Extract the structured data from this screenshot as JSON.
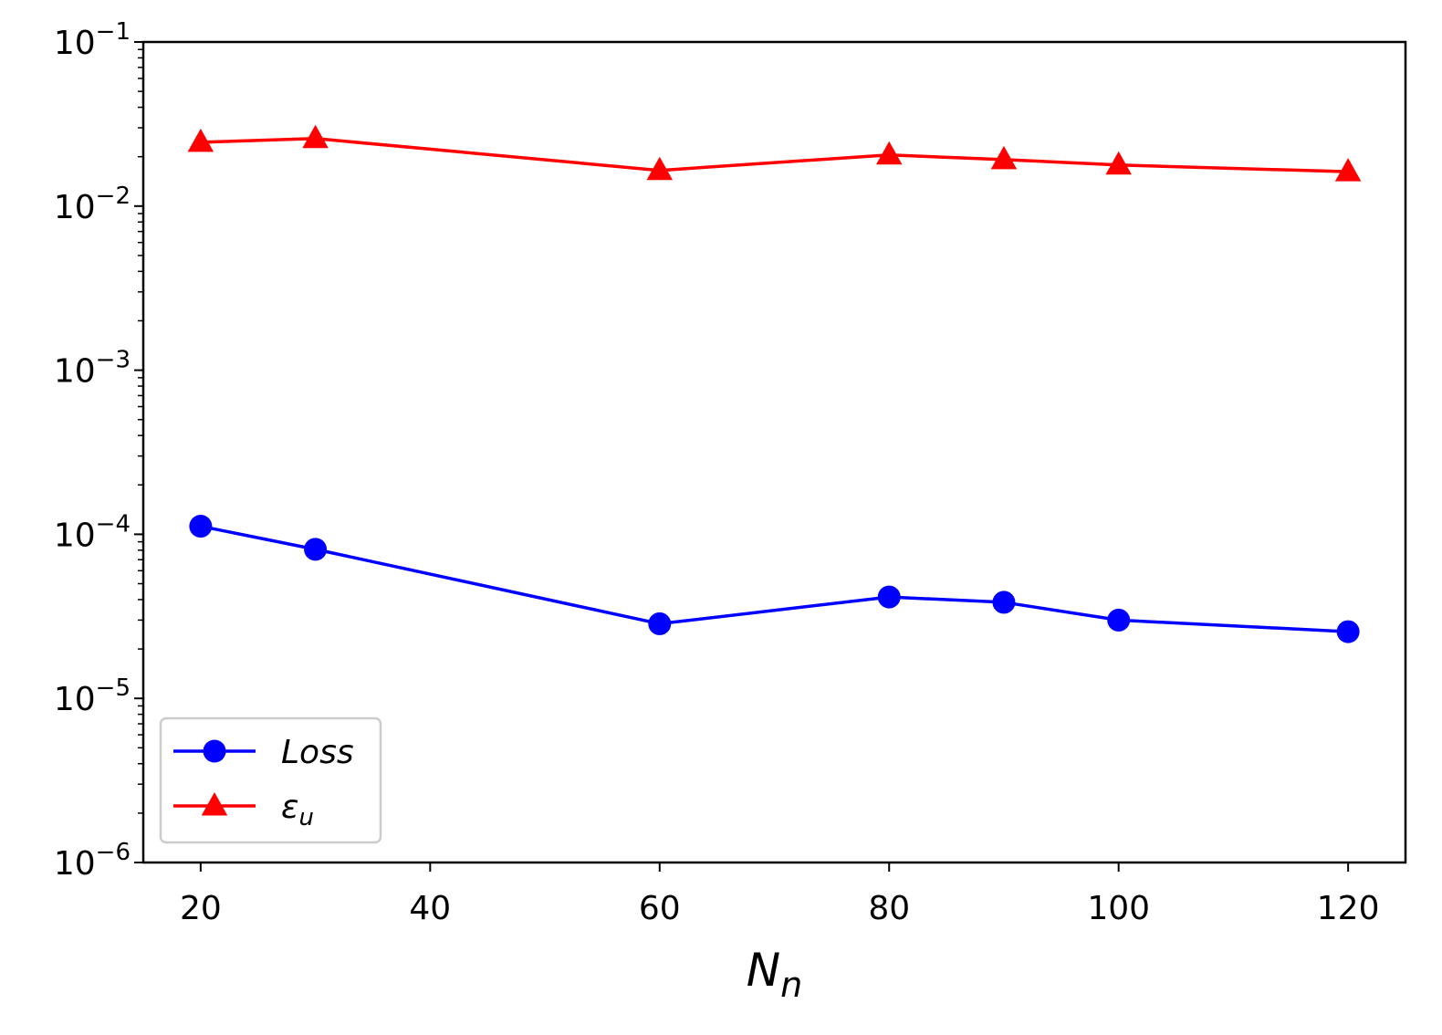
{
  "chart_data": {
    "type": "line",
    "title": "",
    "xlabel": "N",
    "xlabel_subscript": "n",
    "ylabel": "",
    "x": [
      20,
      30,
      60,
      80,
      90,
      100,
      120
    ],
    "xlim": [
      15,
      125
    ],
    "ylim": [
      1e-06,
      0.1
    ],
    "yscale": "log",
    "grid": false,
    "legend_position": "lower-left",
    "x_ticks": [
      20,
      40,
      60,
      80,
      100,
      120
    ],
    "x_tick_labels": [
      "20",
      "40",
      "60",
      "80",
      "100",
      "120"
    ],
    "y_ticks": [
      {
        "value": 1e-06,
        "base": "10",
        "exp": "−6"
      },
      {
        "value": 1e-05,
        "base": "10",
        "exp": "−5"
      },
      {
        "value": 0.0001,
        "base": "10",
        "exp": "−4"
      },
      {
        "value": 0.001,
        "base": "10",
        "exp": "−3"
      },
      {
        "value": 0.01,
        "base": "10",
        "exp": "−2"
      },
      {
        "value": 0.1,
        "base": "10",
        "exp": "−1"
      }
    ],
    "series": [
      {
        "name": "Loss",
        "name_subscript": "",
        "color": "#0000ff",
        "marker": "circle",
        "values": [
          0.000112,
          8.1e-05,
          2.85e-05,
          4.15e-05,
          3.85e-05,
          3e-05,
          2.55e-05
        ]
      },
      {
        "name": "ε",
        "name_subscript": "u",
        "color": "#ff0000",
        "marker": "triangle",
        "values": [
          0.0245,
          0.0258,
          0.0165,
          0.0205,
          0.0192,
          0.0178,
          0.0162
        ]
      }
    ]
  }
}
